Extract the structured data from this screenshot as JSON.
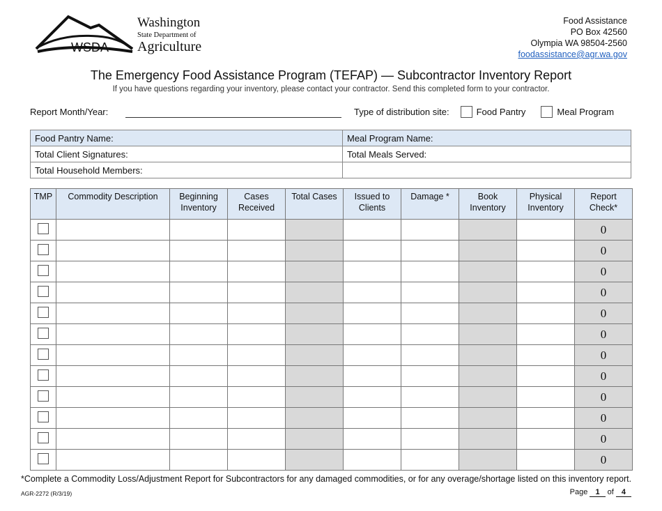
{
  "logo": {
    "abbr": "WSDA",
    "line1": "Washington",
    "line2": "State Department of",
    "line3": "Agriculture"
  },
  "contact": {
    "org": "Food Assistance",
    "po": "PO Box 42560",
    "city": "Olympia WA  98504-2560",
    "email": "foodassistance@agr.wa.gov"
  },
  "title": "The Emergency Food Assistance Program (TEFAP) — Subcontractor Inventory Report",
  "subtitle": "If you have questions regarding your inventory, please contact your contractor.  Send this completed form to your contractor.",
  "report_month_label": "Report Month/Year:",
  "report_month_value": "",
  "distribution": {
    "label": "Type of distribution site:",
    "options": [
      "Food Pantry",
      "Meal Program"
    ]
  },
  "info": {
    "food_pantry_name": "Food Pantry Name:",
    "meal_program_name": "Meal Program Name:",
    "total_client_signatures": "Total Client Signatures:",
    "total_meals_served": "Total Meals Served:",
    "total_household_members": "Total Household Members:"
  },
  "columns": [
    "TMP",
    "Commodity Description",
    "Beginning Inventory",
    "Cases Received",
    "Total Cases",
    "Issued to Clients",
    "Damage *",
    "Book Inventory",
    "Physical Inventory",
    "Report Check*"
  ],
  "rows": [
    {
      "report_check": "0"
    },
    {
      "report_check": "0"
    },
    {
      "report_check": "0"
    },
    {
      "report_check": "0"
    },
    {
      "report_check": "0"
    },
    {
      "report_check": "0"
    },
    {
      "report_check": "0"
    },
    {
      "report_check": "0"
    },
    {
      "report_check": "0"
    },
    {
      "report_check": "0"
    },
    {
      "report_check": "0"
    },
    {
      "report_check": "0"
    }
  ],
  "footnote": "*Complete a Commodity Loss/Adjustment Report for Subcontractors for any damaged commodities, or for any overage/shortage listed on this inventory report.",
  "form_number": "AGR-2272 (R/3/19)",
  "pagination": {
    "page_label": "Page",
    "page": "1",
    "of_label": "of",
    "total": "4"
  },
  "colors": {
    "header_fill": "#dde8f5",
    "computed_fill": "#d9d9d9",
    "link": "#1f5fbf"
  }
}
